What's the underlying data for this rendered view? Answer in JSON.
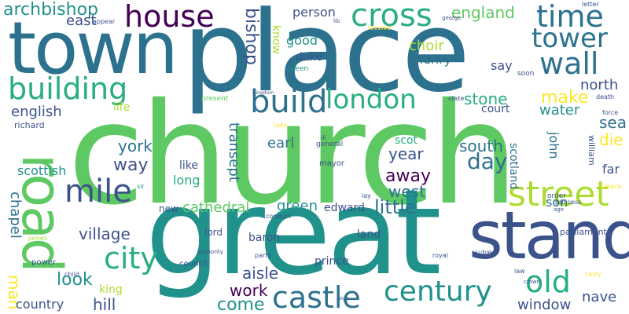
{
  "palette": {
    "dark_purple": "#440154",
    "indigo": "#3b528b",
    "teal_blue": "#2c728e",
    "teal": "#21918c",
    "green_teal": "#28ae80",
    "green": "#5ec962",
    "lime": "#addc30",
    "yellow": "#fde725"
  },
  "words": [
    {
      "text": "church",
      "color": "#5ec962"
    },
    {
      "text": "place",
      "color": "#2c728e"
    },
    {
      "text": "great",
      "color": "#21918c"
    },
    {
      "text": "town",
      "color": "#2c728e"
    },
    {
      "text": "stand",
      "color": "#3b528b"
    },
    {
      "text": "road",
      "color": "#5ec962"
    },
    {
      "text": "street",
      "color": "#addc30"
    },
    {
      "text": "cross",
      "color": "#28ae80"
    },
    {
      "text": "house",
      "color": "#440154"
    },
    {
      "text": "time",
      "color": "#2c728e"
    },
    {
      "text": "tower",
      "color": "#2c728e"
    },
    {
      "text": "wall",
      "color": "#2c728e"
    },
    {
      "text": "building",
      "color": "#28ae80"
    },
    {
      "text": "build",
      "color": "#2c728e"
    },
    {
      "text": "london",
      "color": "#28ae80"
    },
    {
      "text": "city",
      "color": "#28ae80"
    },
    {
      "text": "mile",
      "color": "#3b528b"
    },
    {
      "text": "castle",
      "color": "#2c728e"
    },
    {
      "text": "century",
      "color": "#21918c"
    },
    {
      "text": "old",
      "color": "#28ae80"
    },
    {
      "text": "archbishop",
      "color": "#21918c"
    },
    {
      "text": "bishop",
      "color": "#3b528b"
    },
    {
      "text": "england",
      "color": "#5ec962"
    },
    {
      "text": "east",
      "color": "#3b528b"
    },
    {
      "text": "person",
      "color": "#3b528b"
    },
    {
      "text": "know",
      "color": "#addc30"
    },
    {
      "text": "good",
      "color": "#21918c"
    },
    {
      "text": "choir",
      "color": "#addc30"
    },
    {
      "text": "henry",
      "color": "#2c728e"
    },
    {
      "text": "duke",
      "color": "#3b528b"
    },
    {
      "text": "queen",
      "color": "#21918c"
    },
    {
      "text": "say",
      "color": "#3b528b"
    },
    {
      "text": "soon",
      "color": "#3b528b"
    },
    {
      "text": "north",
      "color": "#3b528b"
    },
    {
      "text": "make",
      "color": "#fde725"
    },
    {
      "text": "stone",
      "color": "#28ae80"
    },
    {
      "text": "water",
      "color": "#21918c"
    },
    {
      "text": "sea",
      "color": "#2c728e"
    },
    {
      "text": "english",
      "color": "#3b528b"
    },
    {
      "text": "life",
      "color": "#addc30"
    },
    {
      "text": "present",
      "color": "#5ec962"
    },
    {
      "text": "state",
      "color": "#3b528b"
    },
    {
      "text": "court",
      "color": "#3b528b"
    },
    {
      "text": "richard",
      "color": "#3b528b"
    },
    {
      "text": "york",
      "color": "#2c728e"
    },
    {
      "text": "way",
      "color": "#3b528b"
    },
    {
      "text": "transept",
      "color": "#2c728e"
    },
    {
      "text": "earl",
      "color": "#2c728e"
    },
    {
      "text": "scot",
      "color": "#28ae80"
    },
    {
      "text": "year",
      "color": "#3b528b"
    },
    {
      "text": "south",
      "color": "#2c728e"
    },
    {
      "text": "day",
      "color": "#2c728e"
    },
    {
      "text": "john",
      "color": "#2c728e"
    },
    {
      "text": "die",
      "color": "#fde725"
    },
    {
      "text": "scottish",
      "color": "#21918c"
    },
    {
      "text": "like",
      "color": "#3b528b"
    },
    {
      "text": "long",
      "color": "#28ae80"
    },
    {
      "text": "general",
      "color": "#3b528b"
    },
    {
      "text": "mayor",
      "color": "#3b528b"
    },
    {
      "text": "away",
      "color": "#440154"
    },
    {
      "text": "west",
      "color": "#2c728e"
    },
    {
      "text": "scotland",
      "color": "#2c728e"
    },
    {
      "text": "far",
      "color": "#3b528b"
    },
    {
      "text": "william",
      "color": "#3b528b"
    },
    {
      "text": "chapel",
      "color": "#2c728e"
    },
    {
      "text": "cathedral",
      "color": "#5ec962"
    },
    {
      "text": "green",
      "color": "#21918c"
    },
    {
      "text": "edward",
      "color": "#3b528b"
    },
    {
      "text": "little",
      "color": "#2c728e"
    },
    {
      "text": "son",
      "color": "#2c728e"
    },
    {
      "text": "order",
      "color": "#3b528b"
    },
    {
      "text": "village",
      "color": "#3b528b"
    },
    {
      "text": "new",
      "color": "#3b528b"
    },
    {
      "text": "lord",
      "color": "#3b528b"
    },
    {
      "text": "baron",
      "color": "#3b528b"
    },
    {
      "text": "land",
      "color": "#3b528b"
    },
    {
      "text": "parliament",
      "color": "#3b528b"
    },
    {
      "text": "man",
      "color": "#fde725"
    },
    {
      "text": "look",
      "color": "#21918c"
    },
    {
      "text": "aisle",
      "color": "#3b528b"
    },
    {
      "text": "prince",
      "color": "#3b528b"
    },
    {
      "text": "council",
      "color": "#3b528b"
    },
    {
      "text": "king",
      "color": "#addc30"
    },
    {
      "text": "hill",
      "color": "#3b528b"
    },
    {
      "text": "country",
      "color": "#3b528b"
    },
    {
      "text": "work",
      "color": "#440154"
    },
    {
      "text": "come",
      "color": "#21918c"
    },
    {
      "text": "window",
      "color": "#3b528b"
    },
    {
      "text": "nave",
      "color": "#3b528b"
    },
    {
      "text": "princess",
      "color": "#3b528b"
    },
    {
      "text": "conduct",
      "color": "#3b528b"
    },
    {
      "text": "party",
      "color": "#3b528b"
    },
    {
      "text": "subject",
      "color": "#3b528b"
    },
    {
      "text": "royal",
      "color": "#3b528b"
    },
    {
      "text": "power",
      "color": "#3b528b"
    },
    {
      "text": "child",
      "color": "#3b528b"
    },
    {
      "text": "lay",
      "color": "#3b528b"
    },
    {
      "text": "iii",
      "color": "#3b528b"
    },
    {
      "text": "law",
      "color": "#3b528b"
    },
    {
      "text": "force",
      "color": "#3b528b"
    },
    {
      "text": "death",
      "color": "#3b528b"
    },
    {
      "text": "letter",
      "color": "#3b528b"
    },
    {
      "text": "appear",
      "color": "#3b528b"
    },
    {
      "text": "receive",
      "color": "#fde725"
    },
    {
      "text": "sir",
      "color": "#21918c"
    },
    {
      "text": "lady",
      "color": "#fde725"
    },
    {
      "text": "james",
      "color": "#addc30"
    },
    {
      "text": "palace",
      "color": "#fde725"
    },
    {
      "text": "carry",
      "color": "#fde725"
    },
    {
      "text": "age",
      "color": "#3b528b"
    },
    {
      "text": "authority",
      "color": "#3b528b"
    },
    {
      "text": "crown",
      "color": "#3b528b"
    },
    {
      "text": "lib",
      "color": "#3b528b"
    },
    {
      "text": "george",
      "color": "#3b528b"
    },
    {
      "text": "kingdom",
      "color": "#3b528b"
    },
    {
      "text": "reign",
      "color": "#3b528b"
    }
  ]
}
